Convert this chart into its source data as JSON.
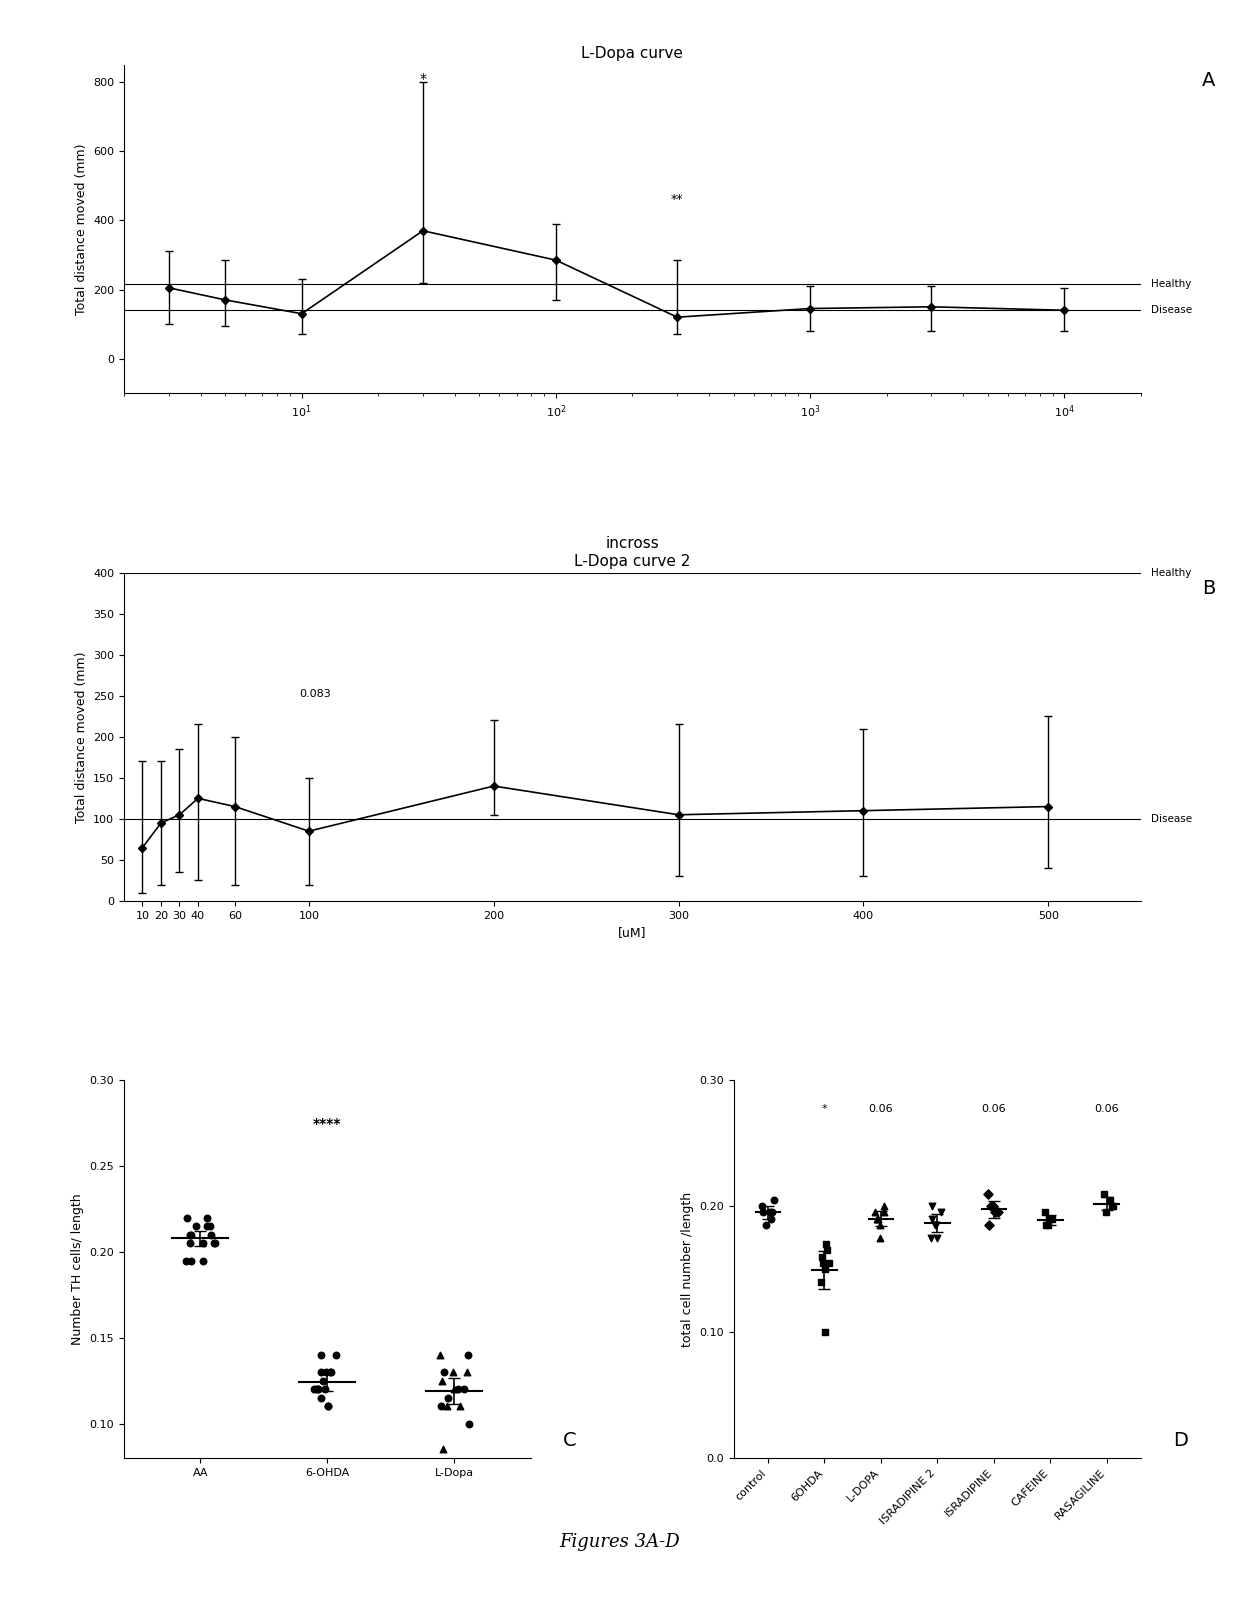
{
  "panel_A": {
    "title": "L-Dopa curve",
    "xlabel": "",
    "ylabel": "Total distance moved (mm)",
    "x_values": [
      3,
      5,
      10,
      30,
      100,
      300,
      1000,
      3000,
      10000
    ],
    "y_values": [
      205,
      170,
      130,
      370,
      285,
      120,
      145,
      150,
      140
    ],
    "y_err_low": [
      105,
      75,
      60,
      150,
      115,
      50,
      65,
      70,
      60
    ],
    "y_err_high": [
      105,
      115,
      100,
      430,
      105,
      165,
      65,
      60,
      65
    ],
    "healthy_line": 215,
    "disease_line": 140,
    "ylim": [
      -100,
      850
    ],
    "xlim_left": 2,
    "xlim_right": 20000,
    "star1_x": 30,
    "star1_y": 830,
    "star1_text": "*",
    "star2_x": 300,
    "star2_y": 480,
    "star2_text": "**"
  },
  "panel_B": {
    "title_line1": "incross",
    "title_line2": "L-Dopa curve 2",
    "xlabel": "[uM]",
    "ylabel": "Total distance moved (mm)",
    "x_values": [
      10,
      20,
      30,
      40,
      60,
      100,
      200,
      300,
      400,
      500
    ],
    "y_values": [
      65,
      95,
      105,
      125,
      115,
      85,
      140,
      105,
      110,
      115
    ],
    "y_err_low": [
      55,
      75,
      70,
      100,
      95,
      65,
      35,
      75,
      80,
      75
    ],
    "y_err_high": [
      105,
      75,
      80,
      90,
      85,
      65,
      80,
      110,
      100,
      110
    ],
    "healthy_line": 400,
    "disease_line": 100,
    "ylim": [
      0,
      400
    ],
    "xlim_left": 0,
    "xlim_right": 550,
    "pval_x": 95,
    "pval_y": 248,
    "pval_text": "0.083"
  },
  "panel_C": {
    "ylabel": "Number TH cells/ length",
    "groups": [
      "AA",
      "6-OHDA",
      "L-Dopa"
    ],
    "group_data": [
      [
        0.215,
        0.205,
        0.22,
        0.195,
        0.21,
        0.205,
        0.22,
        0.21,
        0.205,
        0.215,
        0.195,
        0.205,
        0.215,
        0.195,
        0.21
      ],
      [
        0.12,
        0.13,
        0.11,
        0.12,
        0.14,
        0.13,
        0.12,
        0.115,
        0.125,
        0.13,
        0.14,
        0.12,
        0.11,
        0.13,
        0.12
      ],
      [
        0.12,
        0.13,
        0.11,
        0.14,
        0.1,
        0.12,
        0.115,
        0.125,
        0.11,
        0.13,
        0.085,
        0.12,
        0.14,
        0.13,
        0.11
      ]
    ],
    "group_markers": [
      "o",
      "o",
      "mixed"
    ],
    "significance": "****",
    "sig_x": 2,
    "sig_y": 0.272,
    "ylim_bottom": 0.08,
    "ylim_top": 0.3,
    "yticks": [
      0.1,
      0.15,
      0.2,
      0.25,
      0.3
    ],
    "ytick_labels": [
      "0.10",
      "0.15",
      "0.20",
      "0.25",
      "0.30"
    ]
  },
  "panel_D": {
    "ylabel": "total cell number /length",
    "groups": [
      "control",
      "6OHDA",
      "L-DOPA",
      "ISRADIPINE 2",
      "ISRADIPINE",
      "CAFEINE",
      "RASAGILINE"
    ],
    "group_data": [
      [
        0.205,
        0.195,
        0.19,
        0.195,
        0.2,
        0.195,
        0.185
      ],
      [
        0.1,
        0.14,
        0.15,
        0.155,
        0.165,
        0.155,
        0.17,
        0.16
      ],
      [
        0.19,
        0.195,
        0.185,
        0.195,
        0.2,
        0.175,
        0.19
      ],
      [
        0.175,
        0.185,
        0.19,
        0.195,
        0.2,
        0.175,
        0.185
      ],
      [
        0.185,
        0.195,
        0.2,
        0.21,
        0.195,
        0.2
      ],
      [
        0.185,
        0.19,
        0.195,
        0.185,
        0.19
      ],
      [
        0.195,
        0.2,
        0.205,
        0.21,
        0.2
      ]
    ],
    "markers": [
      "o",
      "s",
      "^",
      "v",
      "D",
      "s",
      "s"
    ],
    "sig_labels": [
      "",
      "*",
      "0.06",
      "",
      "0.06",
      "",
      "0.06"
    ],
    "sig_y": 0.275,
    "ylim_bottom": 0.0,
    "ylim_top": 0.3,
    "yticks": [
      0.0,
      0.1,
      0.2,
      0.3
    ],
    "ytick_labels": [
      "0.0",
      "0.10",
      "0.20",
      "0.30"
    ]
  },
  "figure_label": "Figures 3A-D",
  "bg_color": "#ffffff"
}
